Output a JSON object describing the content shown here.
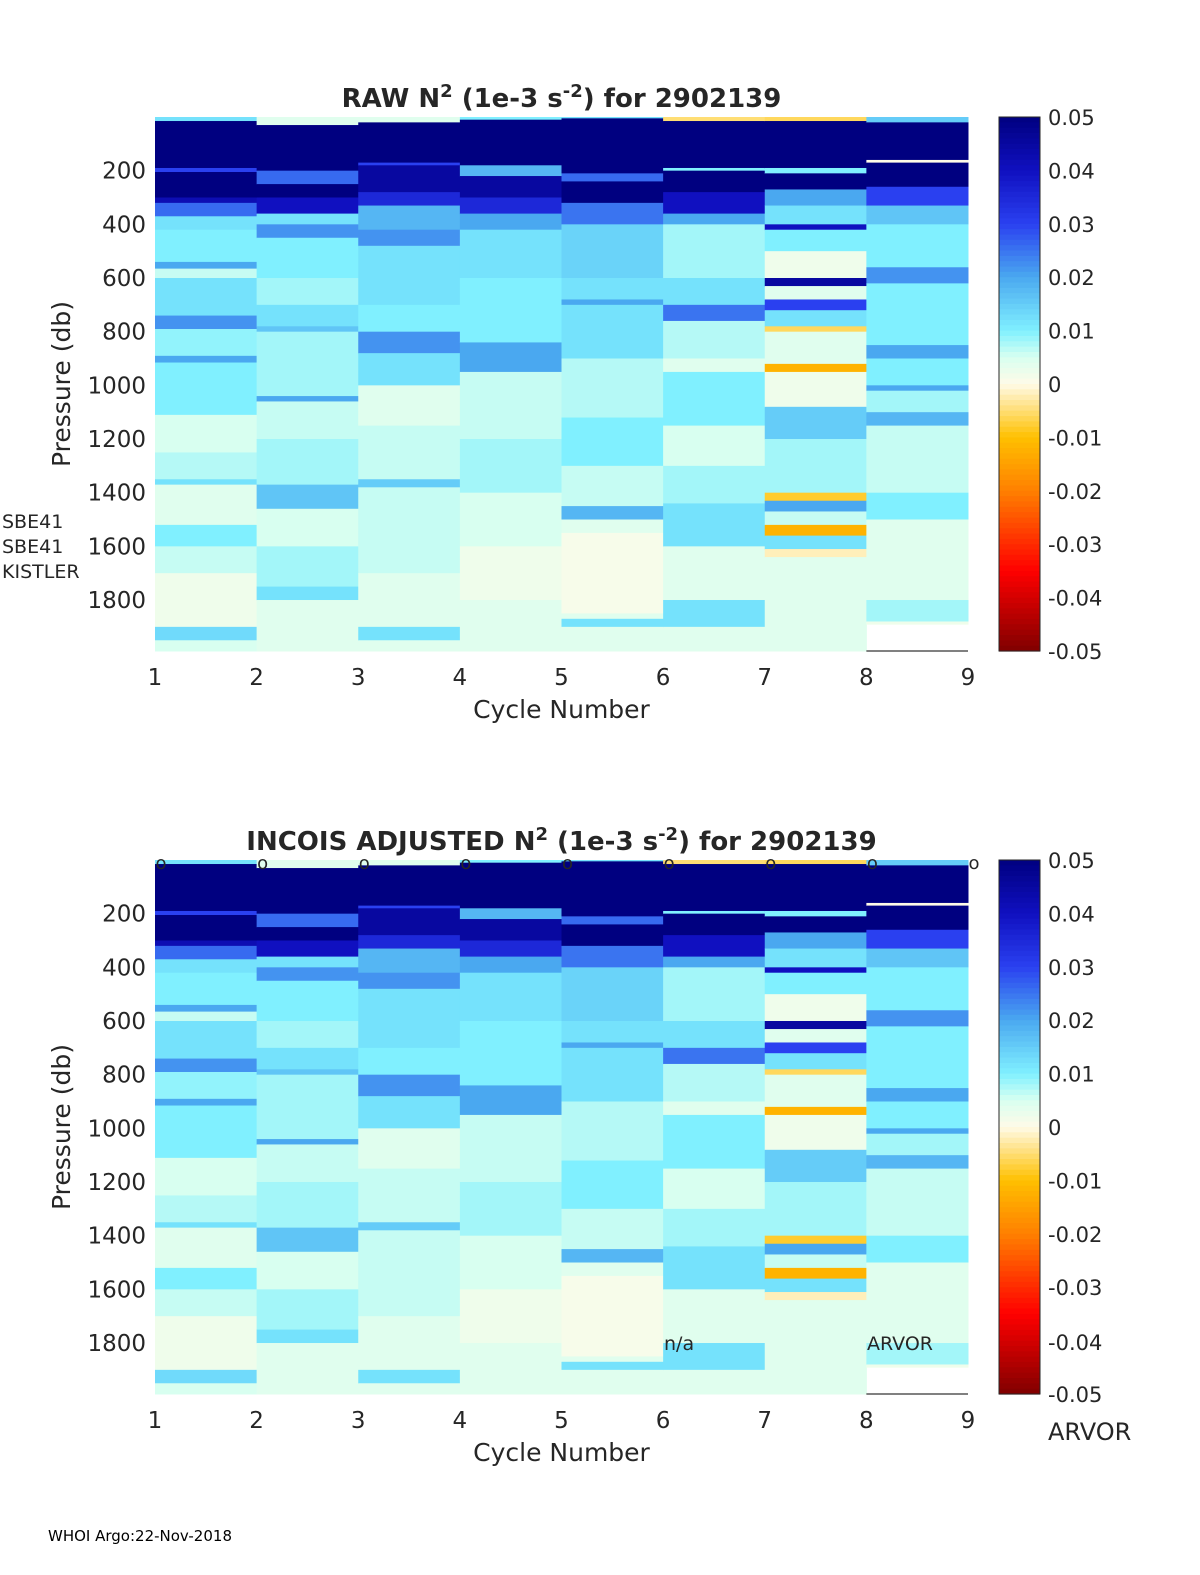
{
  "footer": "WHOI Argo:22-Nov-2018",
  "colormap": {
    "clim": [
      -0.05,
      0.05
    ],
    "ticks": [
      "0.05",
      "0.04",
      "0.03",
      "0.02",
      "0.01",
      "0",
      "-0.01",
      "-0.02",
      "-0.03",
      "-0.04",
      "-0.05"
    ],
    "stops": [
      [
        -0.05,
        "#800000"
      ],
      [
        -0.035,
        "#ff0000"
      ],
      [
        -0.02,
        "#ff8000"
      ],
      [
        -0.01,
        "#ffc000"
      ],
      [
        0,
        "#fffbe8"
      ],
      [
        0.005,
        "#d8fff0"
      ],
      [
        0.01,
        "#80f0ff"
      ],
      [
        0.02,
        "#4aa8f0"
      ],
      [
        0.03,
        "#2a40f0"
      ],
      [
        0.04,
        "#1010c0"
      ],
      [
        0.05,
        "#000080"
      ]
    ]
  },
  "chart_data": [
    {
      "type": "heatmap",
      "title_parts": [
        "RAW N",
        "2",
        " (1e-3 s",
        "-2",
        ") for 2902139"
      ],
      "xlabel": "Cycle Number",
      "ylabel": "Pressure (db)",
      "xlim": [
        1,
        9
      ],
      "ylim": [
        0,
        1990
      ],
      "xticks": [
        "1",
        "2",
        "3",
        "4",
        "5",
        "6",
        "7",
        "8",
        "9"
      ],
      "yticks": [
        "200",
        "400",
        "600",
        "800",
        "1000",
        "1200",
        "1400",
        "1600",
        "1800"
      ],
      "annotations": [
        "SBE41",
        "SBE41",
        "KISTLER"
      ],
      "markers": []
    },
    {
      "type": "heatmap",
      "title_parts": [
        "INCOIS  ADJUSTED N",
        "2",
        " (1e-3 s",
        "-2",
        ") for 2902139"
      ],
      "xlabel": "Cycle Number",
      "ylabel": "Pressure (db)",
      "xlim": [
        1,
        9
      ],
      "ylim": [
        0,
        1990
      ],
      "xticks": [
        "1",
        "2",
        "3",
        "4",
        "5",
        "6",
        "7",
        "8",
        "9"
      ],
      "yticks": [
        "200",
        "400",
        "600",
        "800",
        "1000",
        "1200",
        "1400",
        "1600",
        "1800"
      ],
      "annotations": [
        "n/a",
        "ARVOR",
        "ARVOR",
        "-0.04"
      ],
      "markers": [
        "o",
        "o",
        "o",
        "o",
        "o",
        "o",
        "o",
        "o",
        "o"
      ]
    }
  ],
  "profiles": [
    [
      [
        0,
        0.012
      ],
      [
        15,
        0.05
      ],
      [
        190,
        0.03
      ],
      [
        205,
        0.05
      ],
      [
        300,
        0.042
      ],
      [
        320,
        0.026
      ],
      [
        370,
        0.012
      ],
      [
        420,
        0.01
      ],
      [
        540,
        0.02
      ],
      [
        565,
        0.006
      ],
      [
        600,
        0.012
      ],
      [
        740,
        0.022
      ],
      [
        790,
        0.009
      ],
      [
        890,
        0.02
      ],
      [
        915,
        0.01
      ],
      [
        1110,
        0.005
      ],
      [
        1250,
        0.007
      ],
      [
        1350,
        0.012
      ],
      [
        1370,
        0.004
      ],
      [
        1520,
        0.01
      ],
      [
        1600,
        0.006
      ],
      [
        1700,
        0.002
      ],
      [
        1900,
        0.013
      ],
      [
        1950,
        0.005
      ]
    ],
    [
      [
        0,
        0.004
      ],
      [
        30,
        0.05
      ],
      [
        200,
        0.026
      ],
      [
        250,
        0.05
      ],
      [
        300,
        0.04
      ],
      [
        360,
        0.012
      ],
      [
        400,
        0.022
      ],
      [
        450,
        0.01
      ],
      [
        600,
        0.008
      ],
      [
        700,
        0.012
      ],
      [
        780,
        0.016
      ],
      [
        800,
        0.008
      ],
      [
        1040,
        0.02
      ],
      [
        1060,
        0.006
      ],
      [
        1200,
        0.008
      ],
      [
        1370,
        0.016
      ],
      [
        1460,
        0.005
      ],
      [
        1600,
        0.008
      ],
      [
        1750,
        0.012
      ],
      [
        1800,
        0.004
      ],
      [
        1990,
        0.004
      ]
    ],
    [
      [
        0,
        0.004
      ],
      [
        20,
        0.05
      ],
      [
        170,
        0.03
      ],
      [
        180,
        0.045
      ],
      [
        280,
        0.035
      ],
      [
        330,
        0.018
      ],
      [
        420,
        0.022
      ],
      [
        480,
        0.012
      ],
      [
        700,
        0.01
      ],
      [
        800,
        0.022
      ],
      [
        880,
        0.012
      ],
      [
        1000,
        0.004
      ],
      [
        1150,
        0.006
      ],
      [
        1350,
        0.015
      ],
      [
        1380,
        0.006
      ],
      [
        1700,
        0.004
      ],
      [
        1900,
        0.012
      ],
      [
        1950,
        0.004
      ]
    ],
    [
      [
        0,
        0.01
      ],
      [
        10,
        0.05
      ],
      [
        180,
        0.018
      ],
      [
        220,
        0.045
      ],
      [
        300,
        0.035
      ],
      [
        360,
        0.02
      ],
      [
        420,
        0.012
      ],
      [
        600,
        0.01
      ],
      [
        840,
        0.02
      ],
      [
        950,
        0.006
      ],
      [
        1200,
        0.008
      ],
      [
        1400,
        0.005
      ],
      [
        1600,
        0.002
      ],
      [
        1800,
        0.004
      ],
      [
        1990,
        0.004
      ]
    ],
    [
      [
        0,
        0.012
      ],
      [
        5,
        0.05
      ],
      [
        210,
        0.026
      ],
      [
        240,
        0.05
      ],
      [
        320,
        0.025
      ],
      [
        400,
        0.014
      ],
      [
        600,
        0.012
      ],
      [
        680,
        0.02
      ],
      [
        700,
        0.012
      ],
      [
        900,
        0.007
      ],
      [
        1120,
        0.01
      ],
      [
        1300,
        0.006
      ],
      [
        1450,
        0.018
      ],
      [
        1500,
        0.004
      ],
      [
        1550,
        0.001
      ],
      [
        1850,
        0.004
      ],
      [
        1870,
        0.012
      ],
      [
        1900,
        0.004
      ]
    ],
    [
      [
        0,
        -0.005
      ],
      [
        15,
        0.05
      ],
      [
        190,
        0.01
      ],
      [
        200,
        0.05
      ],
      [
        280,
        0.04
      ],
      [
        360,
        0.02
      ],
      [
        400,
        0.008
      ],
      [
        600,
        0.012
      ],
      [
        700,
        0.025
      ],
      [
        760,
        0.007
      ],
      [
        900,
        0.004
      ],
      [
        950,
        0.01
      ],
      [
        1150,
        0.005
      ],
      [
        1300,
        0.008
      ],
      [
        1440,
        0.012
      ],
      [
        1600,
        0.004
      ],
      [
        1800,
        0.012
      ],
      [
        1900,
        0.004
      ]
    ],
    [
      [
        0,
        -0.006
      ],
      [
        15,
        0.05
      ],
      [
        190,
        0.01
      ],
      [
        210,
        0.05
      ],
      [
        270,
        0.02
      ],
      [
        330,
        0.012
      ],
      [
        400,
        0.04
      ],
      [
        420,
        0.01
      ],
      [
        500,
        0.002
      ],
      [
        600,
        0.045
      ],
      [
        630,
        0.004
      ],
      [
        680,
        0.03
      ],
      [
        720,
        0.012
      ],
      [
        780,
        -0.006
      ],
      [
        800,
        0.004
      ],
      [
        920,
        -0.012
      ],
      [
        950,
        0.002
      ],
      [
        1080,
        0.015
      ],
      [
        1200,
        0.008
      ],
      [
        1400,
        -0.008
      ],
      [
        1430,
        0.02
      ],
      [
        1470,
        0.006
      ],
      [
        1520,
        -0.012
      ],
      [
        1560,
        0.012
      ],
      [
        1610,
        -0.002
      ],
      [
        1640,
        0.004
      ],
      [
        1990,
        0.004
      ]
    ],
    [
      [
        0,
        0.015
      ],
      [
        20,
        0.05
      ],
      [
        160,
        0.0
      ],
      [
        170,
        0.05
      ],
      [
        260,
        0.03
      ],
      [
        330,
        0.016
      ],
      [
        400,
        0.01
      ],
      [
        560,
        0.022
      ],
      [
        620,
        0.01
      ],
      [
        850,
        0.02
      ],
      [
        900,
        0.01
      ],
      [
        1000,
        0.02
      ],
      [
        1020,
        0.008
      ],
      [
        1100,
        0.018
      ],
      [
        1150,
        0.006
      ],
      [
        1400,
        0.01
      ],
      [
        1500,
        0.004
      ],
      [
        1800,
        0.008
      ],
      [
        1880,
        0.002
      ],
      [
        1990,
        0.002
      ]
    ]
  ]
}
